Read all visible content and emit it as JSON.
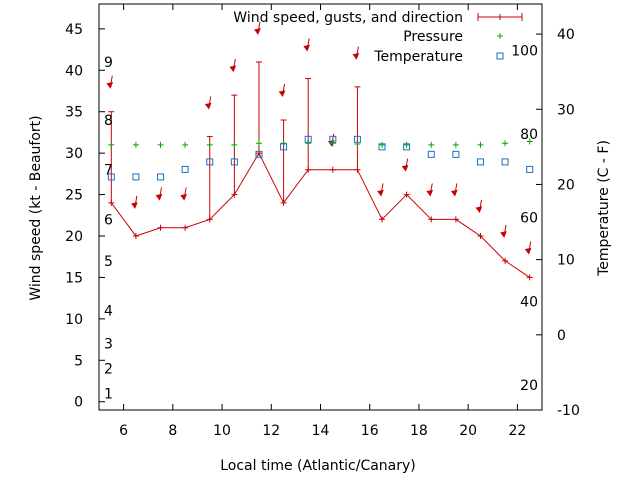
{
  "chart_data": {
    "type": "line",
    "title": "",
    "xlabel": "Local time (Atlantic/Canary)",
    "ylabel": "Wind speed (kt - Beaufort)",
    "y2label": "Temperature (C - F)",
    "xlim": [
      5,
      23
    ],
    "ylim": [
      -1,
      48
    ],
    "y2lim": [
      -10,
      44
    ],
    "x_ticks": [
      6,
      8,
      10,
      12,
      14,
      16,
      18,
      20,
      22
    ],
    "y_ticks": [
      0,
      5,
      10,
      15,
      20,
      25,
      30,
      35,
      40,
      45
    ],
    "y2_ticks": [
      -10,
      0,
      10,
      20,
      30,
      40
    ],
    "beaufort_labels": [
      {
        "label": "1",
        "kt": 1
      },
      {
        "label": "2",
        "kt": 4
      },
      {
        "label": "3",
        "kt": 7
      },
      {
        "label": "4",
        "kt": 11
      },
      {
        "label": "5",
        "kt": 17
      },
      {
        "label": "6",
        "kt": 22
      },
      {
        "label": "7",
        "kt": 28
      },
      {
        "label": "8",
        "kt": 34
      },
      {
        "label": "9",
        "kt": 41
      }
    ],
    "fahrenheit_labels": [
      {
        "label": "20",
        "celsius": -6.7
      },
      {
        "label": "40",
        "celsius": 4.4
      },
      {
        "label": "60",
        "celsius": 15.6
      },
      {
        "label": "80",
        "celsius": 26.7
      },
      {
        "label": "100",
        "celsius": 37.8
      }
    ],
    "series": [
      {
        "name": "Wind speed, gusts, and direction",
        "color": "#cc0000",
        "x": [
          5.5,
          6.5,
          7.5,
          8.5,
          9.5,
          10.5,
          11.5,
          12.5,
          13.5,
          14.5,
          15.5,
          16.5,
          17.5,
          18.5,
          19.5,
          20.5,
          21.5,
          22.5
        ],
        "values": [
          24,
          20,
          21,
          21,
          22,
          25,
          30,
          24,
          28,
          28,
          28,
          22,
          25,
          22,
          22,
          20,
          17,
          15
        ],
        "gusts": [
          35,
          20,
          21,
          21,
          32,
          37,
          41,
          34,
          39,
          28,
          38,
          22,
          25,
          22,
          22,
          20,
          17,
          15
        ],
        "direction_arrows_kt": [
          38.5,
          24,
          25,
          25,
          36,
          40.5,
          45,
          37.5,
          43,
          31.5,
          42,
          25.5,
          28.5,
          25.5,
          25.5,
          23.5,
          20.5,
          18.5
        ]
      },
      {
        "name": "Pressure",
        "color": "#00aa00",
        "x": [
          5.5,
          6.5,
          7.5,
          8.5,
          9.5,
          10.5,
          11.5,
          12.5,
          13.5,
          14.5,
          15.5,
          16.5,
          17.5,
          18.5,
          19.5,
          20.5,
          21.5,
          22.5
        ],
        "values": [
          31,
          31,
          31,
          31,
          31,
          31,
          31.2,
          31.2,
          31.2,
          31.2,
          31.1,
          31,
          31,
          31,
          31,
          31,
          31.2,
          31.4
        ]
      },
      {
        "name": "Temperature",
        "color": "#1f6fc0",
        "x": [
          5.5,
          6.5,
          7.5,
          8.5,
          9.5,
          10.5,
          11.5,
          12.5,
          13.5,
          14.5,
          15.5,
          16.5,
          17.5,
          18.5,
          19.5,
          20.5,
          21.5,
          22.5
        ],
        "values": [
          21,
          21,
          21,
          22,
          23,
          23,
          24,
          25,
          26,
          26,
          26,
          25,
          25,
          24,
          24,
          23,
          23,
          22
        ]
      }
    ]
  }
}
